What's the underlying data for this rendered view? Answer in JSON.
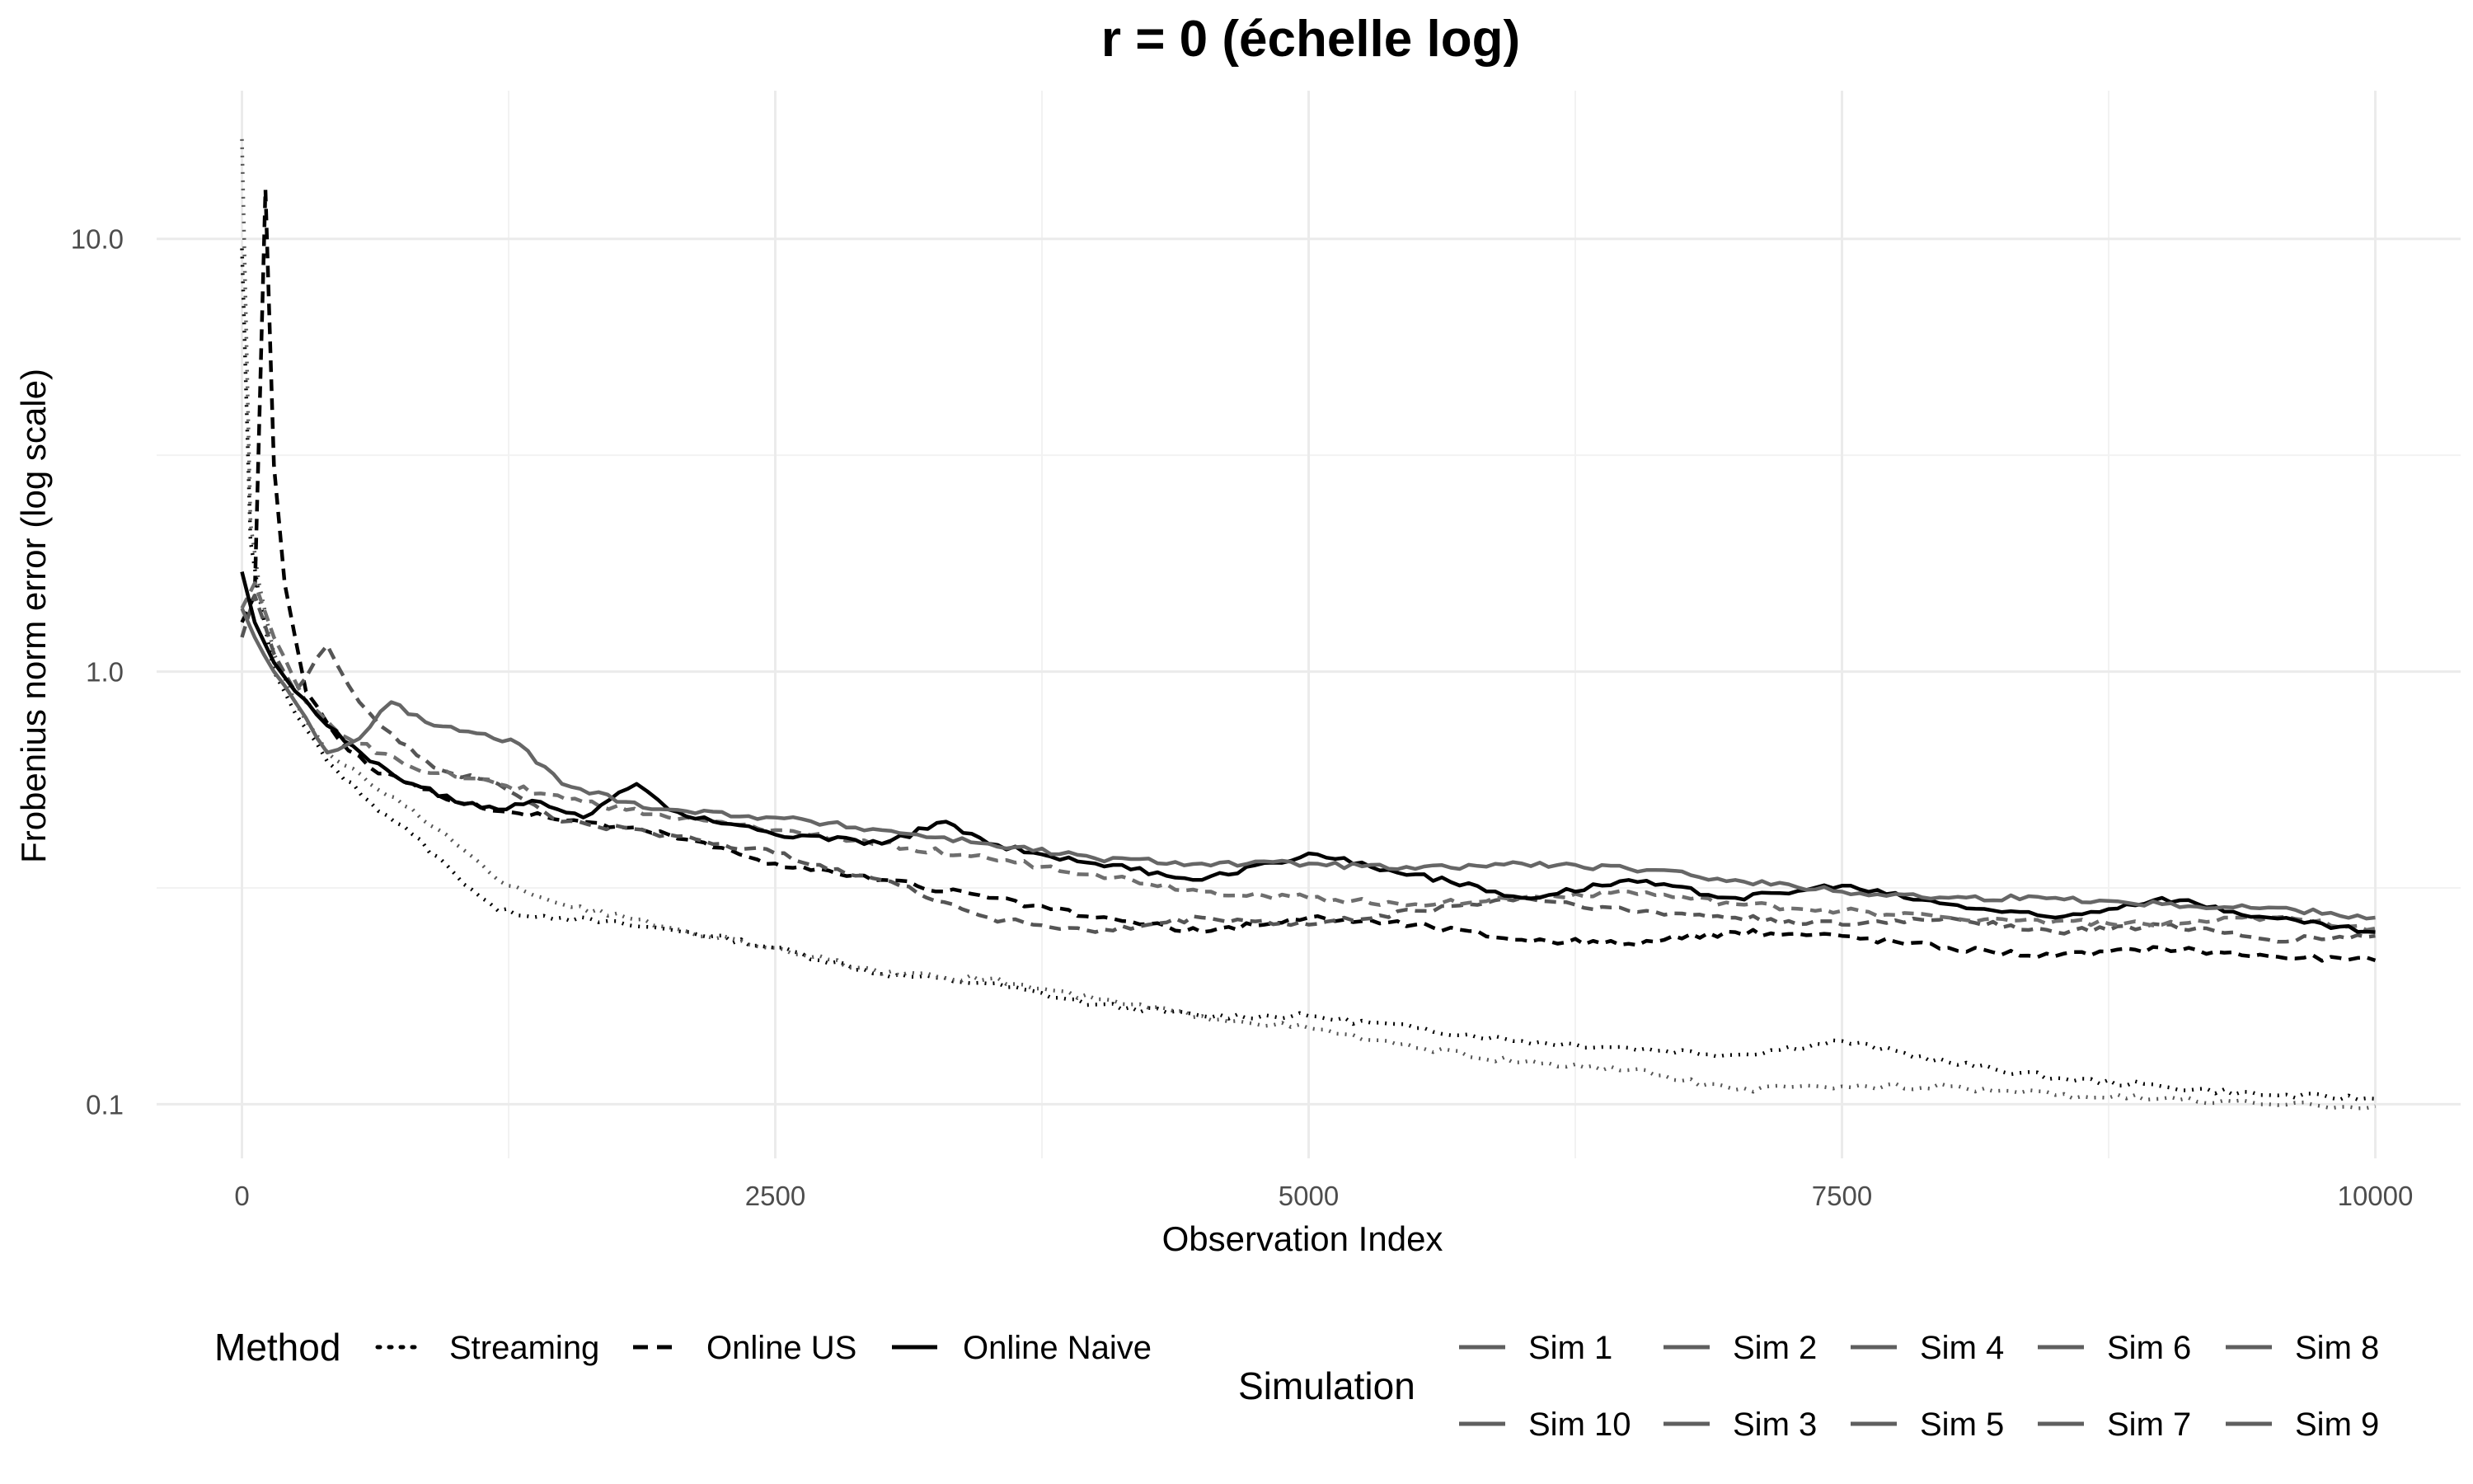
{
  "chart_data": {
    "type": "line",
    "title": "r = 0 (échelle log)",
    "xlabel": "Observation Index",
    "ylabel": "Frobenius norm error (log scale)",
    "x_scale": "linear",
    "y_scale": "log10",
    "xlim": [
      -400,
      10400
    ],
    "ylim": [
      0.075,
      22
    ],
    "x_ticks": [
      0,
      2500,
      5000,
      7500,
      10000
    ],
    "x_tick_labels": [
      "0",
      "2500",
      "5000",
      "7500",
      "10000"
    ],
    "y_ticks": [
      0.1,
      1.0,
      10.0
    ],
    "y_tick_labels": [
      "0.1",
      "1.0",
      "10.0"
    ],
    "grid": true,
    "legend_position": "bottom",
    "legend_method": {
      "title": "Method",
      "items": [
        {
          "label": "Streaming",
          "dash": "dotted"
        },
        {
          "label": "Online US",
          "dash": "dashed"
        },
        {
          "label": "Online Naive",
          "dash": "solid"
        }
      ]
    },
    "legend_simulation": {
      "title": "Simulation",
      "items": [
        "Sim 1",
        "Sim 2",
        "Sim 4",
        "Sim 6",
        "Sim 8",
        "Sim 10",
        "Sim 3",
        "Sim 5",
        "Sim 7",
        "Sim 9"
      ]
    },
    "series": [
      {
        "method": "Streaming",
        "color": "#000000",
        "x": [
          0,
          40,
          80,
          150,
          250,
          400,
          600,
          800,
          1000,
          1200,
          1500,
          1800,
          2100,
          2500,
          3000,
          3500,
          4000,
          4500,
          5000,
          5500,
          6000,
          6500,
          7000,
          7500,
          8000,
          8500,
          9000,
          9500,
          10000
        ],
        "y": [
          9.5,
          2.0,
          1.5,
          1.0,
          0.8,
          0.62,
          0.5,
          0.42,
          0.34,
          0.28,
          0.27,
          0.26,
          0.25,
          0.23,
          0.2,
          0.19,
          0.17,
          0.16,
          0.16,
          0.15,
          0.14,
          0.135,
          0.13,
          0.14,
          0.125,
          0.115,
          0.11,
          0.105,
          0.103
        ]
      },
      {
        "method": "Streaming",
        "color": "#555555",
        "x": [
          0,
          40,
          80,
          150,
          250,
          400,
          600,
          800,
          1000,
          1200,
          1500,
          1800,
          2100,
          2500,
          3000,
          3500,
          4000,
          4500,
          5000,
          5500,
          6000,
          6500,
          7000,
          7500,
          8000,
          8500,
          9000,
          9500,
          10000
        ],
        "y": [
          17.0,
          2.2,
          1.6,
          1.1,
          0.85,
          0.65,
          0.55,
          0.48,
          0.4,
          0.33,
          0.29,
          0.27,
          0.25,
          0.23,
          0.2,
          0.195,
          0.175,
          0.16,
          0.15,
          0.135,
          0.125,
          0.12,
          0.108,
          0.11,
          0.11,
          0.105,
          0.103,
          0.1,
          0.099
        ]
      },
      {
        "method": "Online US",
        "color": "#000000",
        "x": [
          0,
          60,
          110,
          150,
          200,
          300,
          450,
          600,
          800,
          1000,
          1300,
          1600,
          2000,
          2500,
          3000,
          3500,
          4000,
          4500,
          5000,
          5500,
          6000,
          6500,
          7000,
          7500,
          8000,
          8500,
          9000,
          9500,
          10000
        ],
        "y": [
          1.3,
          1.5,
          13.0,
          3.0,
          1.6,
          0.9,
          0.7,
          0.6,
          0.55,
          0.5,
          0.47,
          0.45,
          0.42,
          0.36,
          0.33,
          0.3,
          0.27,
          0.25,
          0.27,
          0.26,
          0.24,
          0.235,
          0.25,
          0.245,
          0.23,
          0.22,
          0.23,
          0.22,
          0.215
        ]
      },
      {
        "method": "Online US",
        "color": "#555555",
        "x": [
          0,
          60,
          150,
          250,
          400,
          550,
          700,
          900,
          1200,
          1500,
          2000,
          2500,
          3000,
          3500,
          4000,
          4500,
          5000,
          5500,
          6000,
          6500,
          7000,
          7500,
          8000,
          8500,
          9000,
          9500,
          10000
        ],
        "y": [
          1.2,
          1.5,
          1.1,
          0.9,
          1.15,
          0.85,
          0.72,
          0.6,
          0.55,
          0.45,
          0.42,
          0.38,
          0.33,
          0.27,
          0.25,
          0.27,
          0.26,
          0.28,
          0.3,
          0.28,
          0.27,
          0.26,
          0.27,
          0.25,
          0.26,
          0.24,
          0.245
        ]
      },
      {
        "method": "Online US",
        "color": "#6e6e6e",
        "x": [
          0,
          60,
          150,
          300,
          500,
          800,
          1200,
          1600,
          2000,
          2500,
          3000,
          3500,
          4000,
          4500,
          5000,
          5500,
          6000,
          6500,
          7000,
          7500,
          8000,
          8500,
          9000,
          9500,
          10000
        ],
        "y": [
          1.4,
          1.6,
          1.2,
          0.85,
          0.7,
          0.6,
          0.55,
          0.5,
          0.46,
          0.43,
          0.4,
          0.37,
          0.34,
          0.31,
          0.3,
          0.29,
          0.3,
          0.31,
          0.29,
          0.28,
          0.27,
          0.265,
          0.26,
          0.27,
          0.255
        ]
      },
      {
        "method": "Online Naive",
        "color": "#000000",
        "x": [
          0,
          60,
          150,
          250,
          400,
          600,
          800,
          1000,
          1200,
          1400,
          1600,
          1850,
          2000,
          2500,
          3000,
          3300,
          3500,
          4000,
          4500,
          5000,
          5500,
          6000,
          6500,
          7000,
          7500,
          8000,
          8500,
          9000,
          9500,
          10000
        ],
        "y": [
          1.7,
          1.3,
          1.05,
          0.9,
          0.75,
          0.62,
          0.55,
          0.5,
          0.48,
          0.5,
          0.46,
          0.55,
          0.48,
          0.42,
          0.4,
          0.45,
          0.4,
          0.36,
          0.33,
          0.38,
          0.34,
          0.3,
          0.33,
          0.3,
          0.32,
          0.29,
          0.27,
          0.3,
          0.27,
          0.25
        ]
      },
      {
        "method": "Online Naive",
        "color": "#666666",
        "x": [
          0,
          60,
          150,
          250,
          400,
          550,
          700,
          900,
          1100,
          1300,
          1500,
          1800,
          2000,
          2500,
          3000,
          3500,
          4000,
          4500,
          5000,
          5500,
          6000,
          6500,
          7000,
          7500,
          8000,
          8500,
          9000,
          9500,
          10000
        ],
        "y": [
          1.4,
          1.2,
          1.0,
          0.85,
          0.65,
          0.7,
          0.85,
          0.75,
          0.72,
          0.68,
          0.55,
          0.5,
          0.48,
          0.46,
          0.43,
          0.4,
          0.37,
          0.36,
          0.36,
          0.35,
          0.36,
          0.35,
          0.33,
          0.31,
          0.3,
          0.3,
          0.29,
          0.285,
          0.27
        ]
      }
    ]
  }
}
